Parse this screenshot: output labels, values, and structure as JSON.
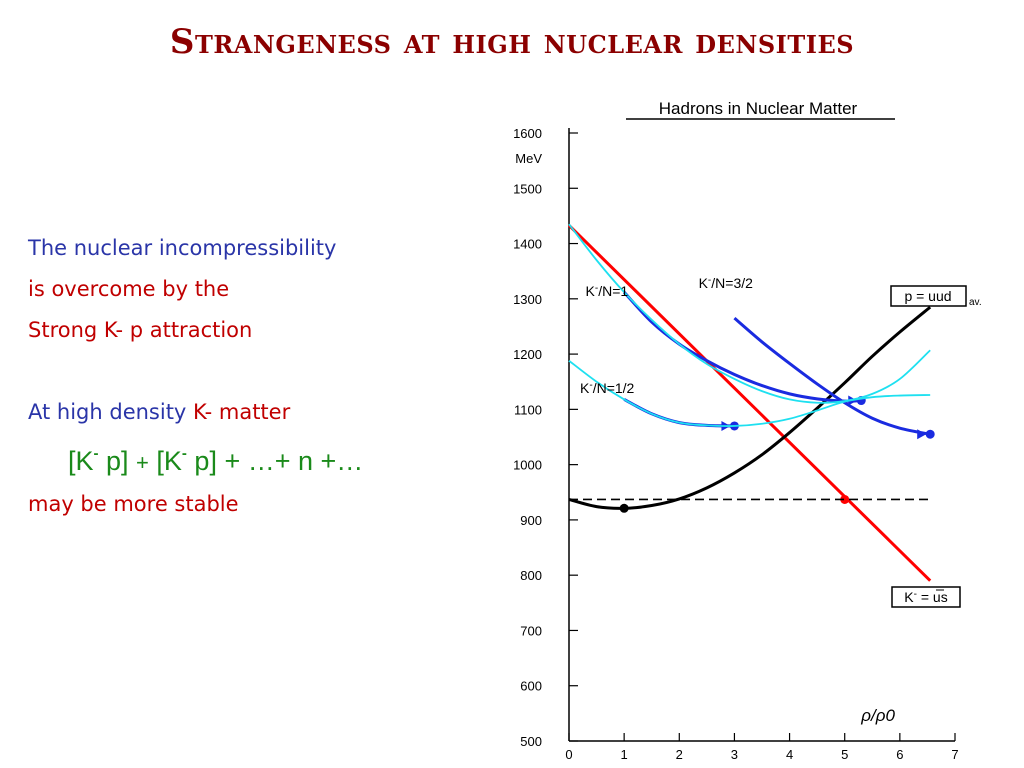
{
  "slide": {
    "title": "Strangeness at high nuclear densities"
  },
  "text": {
    "line1": "The nuclear incompressibility",
    "line2_a": "is ",
    "line2_b": "overcome by the",
    "line3": "Strong K- p attraction",
    "line4_a": "At high density  ",
    "line4_b": "K- matter",
    "formula": {
      "br_open1": "[K",
      "sup1": "-",
      "p1": " p] ",
      "plus1": "+",
      "br_open2": " [K",
      "sup2": "-",
      "rest": " p] + …+ n +…"
    },
    "line6": "may be more stable"
  },
  "colors": {
    "title": "#8b0000",
    "blue_text": "#2a35a8",
    "red_text": "#c00000",
    "green_text": "#1a8a1a",
    "kaon_line": "#ff0000",
    "proton_curve": "#000000",
    "kn_curves": "#1a2be0",
    "cyan_curves": "#1ee0f0"
  },
  "chart_data": {
    "type": "line",
    "title": "Hadrons in Nuclear Matter",
    "ylabel_unit": "MeV",
    "xlabel": "ρ/ρ0",
    "xlim": [
      0,
      7
    ],
    "ylim": [
      500,
      1600
    ],
    "xticks": [
      0,
      1,
      2,
      3,
      4,
      5,
      6,
      7
    ],
    "yticks": [
      500,
      600,
      700,
      800,
      900,
      1000,
      1100,
      1200,
      1300,
      1400,
      1500,
      1600
    ],
    "grid": false,
    "series": [
      {
        "name": "K- = ūs",
        "label_box": "K- = us",
        "color": "#ff0000",
        "x": [
          0,
          6.55
        ],
        "y": [
          1433,
          790
        ],
        "marker": {
          "x": 5.0,
          "y": 937
        }
      },
      {
        "name": "p = uud",
        "label_box": "p = uud",
        "label_suffix": "av.",
        "color": "#000000",
        "x": [
          0,
          0.5,
          1,
          1.5,
          2,
          2.5,
          3,
          3.5,
          4,
          4.5,
          5,
          5.5,
          6,
          6.55
        ],
        "y": [
          937,
          924,
          921,
          926,
          938,
          958,
          985,
          1018,
          1058,
          1102,
          1148,
          1196,
          1240,
          1285
        ],
        "marker": {
          "x": 1.0,
          "y": 921
        }
      },
      {
        "name": "reference 938",
        "color": "#000000",
        "dashed": true,
        "x": [
          0,
          6.55
        ],
        "y": [
          937,
          937
        ]
      },
      {
        "name": "K-/N=1",
        "color": "#1a2be0",
        "x": [
          1.0,
          1.5,
          2.0,
          2.5,
          3.0,
          3.5,
          4.0,
          4.5,
          5.0,
          5.3
        ],
        "y": [
          1312,
          1258,
          1218,
          1188,
          1163,
          1143,
          1128,
          1119,
          1115,
          1116
        ],
        "marker": {
          "x": 5.3,
          "y": 1116
        }
      },
      {
        "name": "K-/N=3/2",
        "color": "#1a2be0",
        "x": [
          3.0,
          3.5,
          4.0,
          4.5,
          5.0,
          5.5,
          6.0,
          6.55
        ],
        "y": [
          1265,
          1222,
          1183,
          1146,
          1112,
          1084,
          1066,
          1055
        ],
        "marker": {
          "x": 6.55,
          "y": 1055
        }
      },
      {
        "name": "K-/N=1/2",
        "color": "#1a2be0",
        "x": [
          1.0,
          1.5,
          2.0,
          2.5,
          3.0
        ],
        "y": [
          1118,
          1092,
          1076,
          1071,
          1070
        ],
        "marker": {
          "x": 3.0,
          "y": 1070
        }
      },
      {
        "name": "cyan-upper",
        "color": "#1ee0f0",
        "x": [
          0,
          0.5,
          1.0,
          1.5,
          2.0,
          2.5,
          3.0,
          3.5,
          4.0,
          4.5,
          5.0,
          5.5,
          6.0,
          6.55
        ],
        "y": [
          1435,
          1370,
          1312,
          1262,
          1218,
          1182,
          1155,
          1133,
          1118,
          1112,
          1115,
          1128,
          1155,
          1207
        ],
        "marker": null
      },
      {
        "name": "cyan-lower",
        "color": "#1ee0f0",
        "x": [
          0,
          0.5,
          1.0,
          1.5,
          2.0,
          2.5,
          3.0,
          3.5,
          4.0,
          4.5,
          5.0,
          5.5,
          6.0,
          6.55
        ],
        "y": [
          1188,
          1150,
          1118,
          1092,
          1076,
          1071,
          1070,
          1074,
          1083,
          1098,
          1114,
          1122,
          1125,
          1126
        ],
        "marker": null
      }
    ],
    "annotations": [
      {
        "text": "K-/N=1",
        "x": 0.3,
        "y": 1305
      },
      {
        "text": "K-/N=3/2",
        "x": 2.35,
        "y": 1320
      },
      {
        "text": "K-/N=1/2",
        "x": 0.2,
        "y": 1130
      }
    ]
  }
}
